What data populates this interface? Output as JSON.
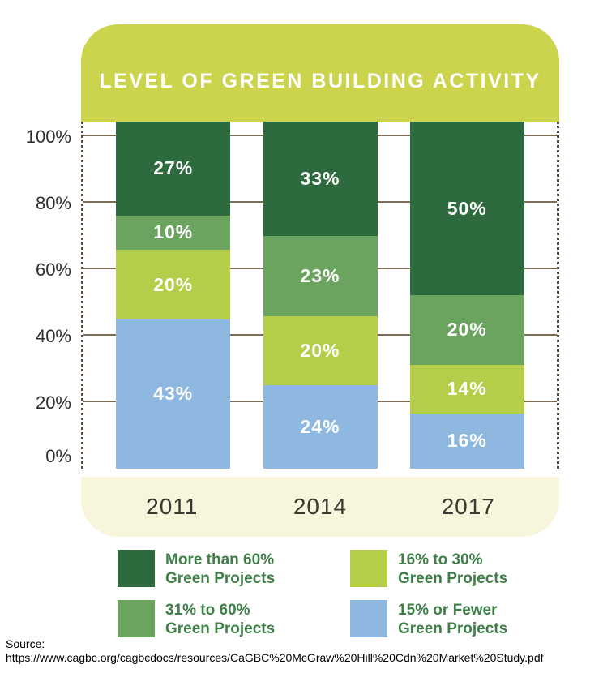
{
  "header": {
    "title": "LEVEL OF GREEN BUILDING ACTIVITY",
    "banner_color": "#ccd34d"
  },
  "chart_data": {
    "type": "bar",
    "variant": "stacked",
    "title": "LEVEL OF GREEN BUILDING ACTIVITY",
    "categories": [
      "2011",
      "2014",
      "2017"
    ],
    "series": [
      {
        "name": "More than 60% Green Projects",
        "color": "#2d6b3f",
        "values": [
          27,
          33,
          50
        ]
      },
      {
        "name": "31% to 60% Green Projects",
        "color": "#6aa45f",
        "values": [
          10,
          23,
          20
        ]
      },
      {
        "name": "16% to 30% Green Projects",
        "color": "#b4ce4a",
        "values": [
          20,
          20,
          14
        ]
      },
      {
        "name": "15% or Fewer Green Projects",
        "color": "#8fb8e0",
        "values": [
          43,
          24,
          16
        ]
      }
    ],
    "value_suffix": "%",
    "yticks": [
      "100%",
      "80%",
      "60%",
      "40%",
      "20%",
      "0%"
    ],
    "ylim": [
      0,
      100
    ],
    "grid": true,
    "gridline_color": "#7e6d5a",
    "axis_border_color": "#5d4b39",
    "legend_position": "bottom"
  },
  "legend": {
    "text_color": "#3e7f47",
    "items": [
      {
        "color": "#2d6b3f",
        "label": "More than 60%\nGreen Projects"
      },
      {
        "color": "#b4ce4a",
        "label": "16% to 30%\nGreen Projects"
      },
      {
        "color": "#6aa45f",
        "label": "31% to 60%\nGreen Projects"
      },
      {
        "color": "#8fb8e0",
        "label": "15% or Fewer\nGreen Projects"
      }
    ]
  },
  "source": {
    "label": "Source:",
    "url": "https://www.cagbc.org/cagbcdocs/resources/CaGBC%20McGraw%20Hill%20Cdn%20Market%20Study.pdf"
  }
}
